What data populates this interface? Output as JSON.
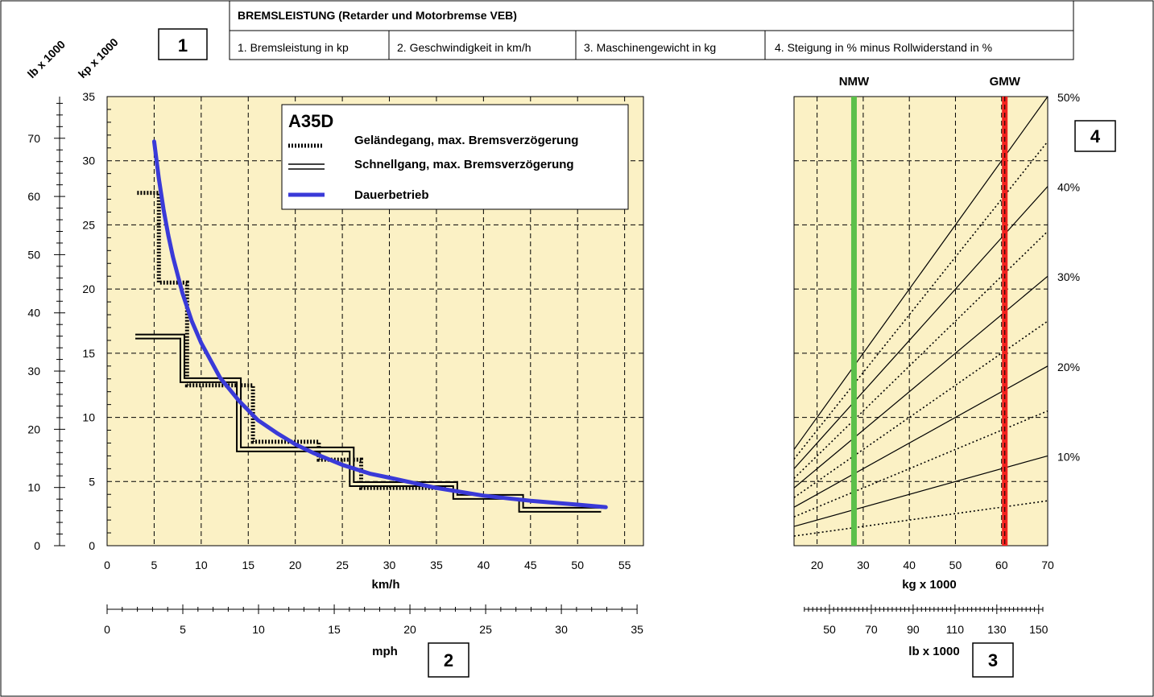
{
  "header": {
    "title": "BREMSLEISTUNG (Retarder und Motorbremse VEB)",
    "items": [
      "1. Bremsleistung in kp",
      "2. Geschwindigkeit in km/h",
      "3. Maschinengewicht in kg",
      "4. Steigung in % minus Rollwiderstand in %"
    ]
  },
  "badges": {
    "b1": "1",
    "b2": "2",
    "b3": "3",
    "b4": "4"
  },
  "axes": {
    "y_kp_title": "kp x 1000",
    "y_lb_title": "lb x 1000",
    "x_kmh_title": "km/h",
    "x_mph_title": "mph",
    "x_kg_title": "kg x 1000",
    "x_lb_title": "lb x 1000"
  },
  "colors": {
    "plot_bg": "#fbf1c5",
    "dauer": "#3a3ad8",
    "nmw": "#5cc04a",
    "gmw": "#f2231f",
    "line": "#000000"
  },
  "chart_data": [
    {
      "type": "line",
      "title": "A35D",
      "xlabel": "km/h",
      "ylabel": "kp x 1000",
      "secondary_ylabel": "lb x 1000",
      "secondary_xlabel": "mph",
      "xlim": [
        0,
        57
      ],
      "ylim": [
        0,
        35
      ],
      "secondary_ylim": [
        0,
        77.16
      ],
      "secondary_xlim": [
        0,
        35.42
      ],
      "x_ticks": [
        0,
        5,
        10,
        15,
        20,
        25,
        30,
        35,
        40,
        45,
        50,
        55
      ],
      "y_ticks": [
        0,
        5,
        10,
        15,
        20,
        25,
        30,
        35
      ],
      "lb_ticks": [
        0,
        10,
        20,
        30,
        40,
        50,
        60,
        70
      ],
      "mph_ticks": [
        0,
        5,
        10,
        15,
        20,
        25,
        30,
        35
      ],
      "grid": true,
      "legend": "top-right",
      "series": [
        {
          "name": "Geländegang, max. Bremsverzögerung",
          "style": "dotted-thick",
          "x": [
            3.2,
            5.5,
            5.5,
            8.5,
            8.5,
            15.5,
            15.5,
            22.5,
            22.5,
            27,
            27,
            36
          ],
          "y": [
            27.5,
            27.5,
            20.5,
            20.5,
            12.5,
            12.5,
            8.1,
            8.1,
            6.7,
            6.7,
            4.5,
            4.5
          ]
        },
        {
          "name": "Schnellgang, max. Bremsverzögerung",
          "style": "double",
          "x": [
            3,
            8,
            8,
            14,
            14,
            26,
            26,
            37,
            37,
            44,
            44,
            52.5
          ],
          "y": [
            16.3,
            16.3,
            12.9,
            12.9,
            7.5,
            7.5,
            4.8,
            4.8,
            3.8,
            3.8,
            2.8,
            2.8
          ]
        },
        {
          "name": "Dauerbetrieb",
          "style": "thick-blue",
          "x": [
            5,
            5.5,
            6,
            6.5,
            7,
            8,
            9,
            10,
            12,
            14,
            16,
            18,
            20,
            22,
            25,
            28,
            30,
            35,
            40,
            45,
            50,
            53
          ],
          "y": [
            31.5,
            28.6,
            26.2,
            24.2,
            22.5,
            19.7,
            17.5,
            15.8,
            13.1,
            11.3,
            9.8,
            8.8,
            7.9,
            7.2,
            6.3,
            5.6,
            5.3,
            4.5,
            3.9,
            3.5,
            3.2,
            3.0
          ]
        }
      ]
    },
    {
      "type": "line",
      "xlabel": "kg x 1000",
      "secondary_xlabel": "lb x 1000",
      "xlim": [
        15,
        70
      ],
      "x_ticks": [
        20,
        30,
        40,
        50,
        60,
        70
      ],
      "lb_ticks": [
        50,
        70,
        90,
        110,
        130,
        150
      ],
      "lb_tick_range": [
        38,
        152
      ],
      "grid": true,
      "grade_labels": [
        "10%",
        "20%",
        "30%",
        "40%",
        "50%"
      ],
      "grades": [
        5,
        10,
        15,
        20,
        25,
        30,
        35,
        40,
        45,
        50
      ],
      "markers": [
        {
          "label": "NMW",
          "x": 28
        },
        {
          "label": "GMW",
          "x": 60.7
        }
      ]
    }
  ]
}
